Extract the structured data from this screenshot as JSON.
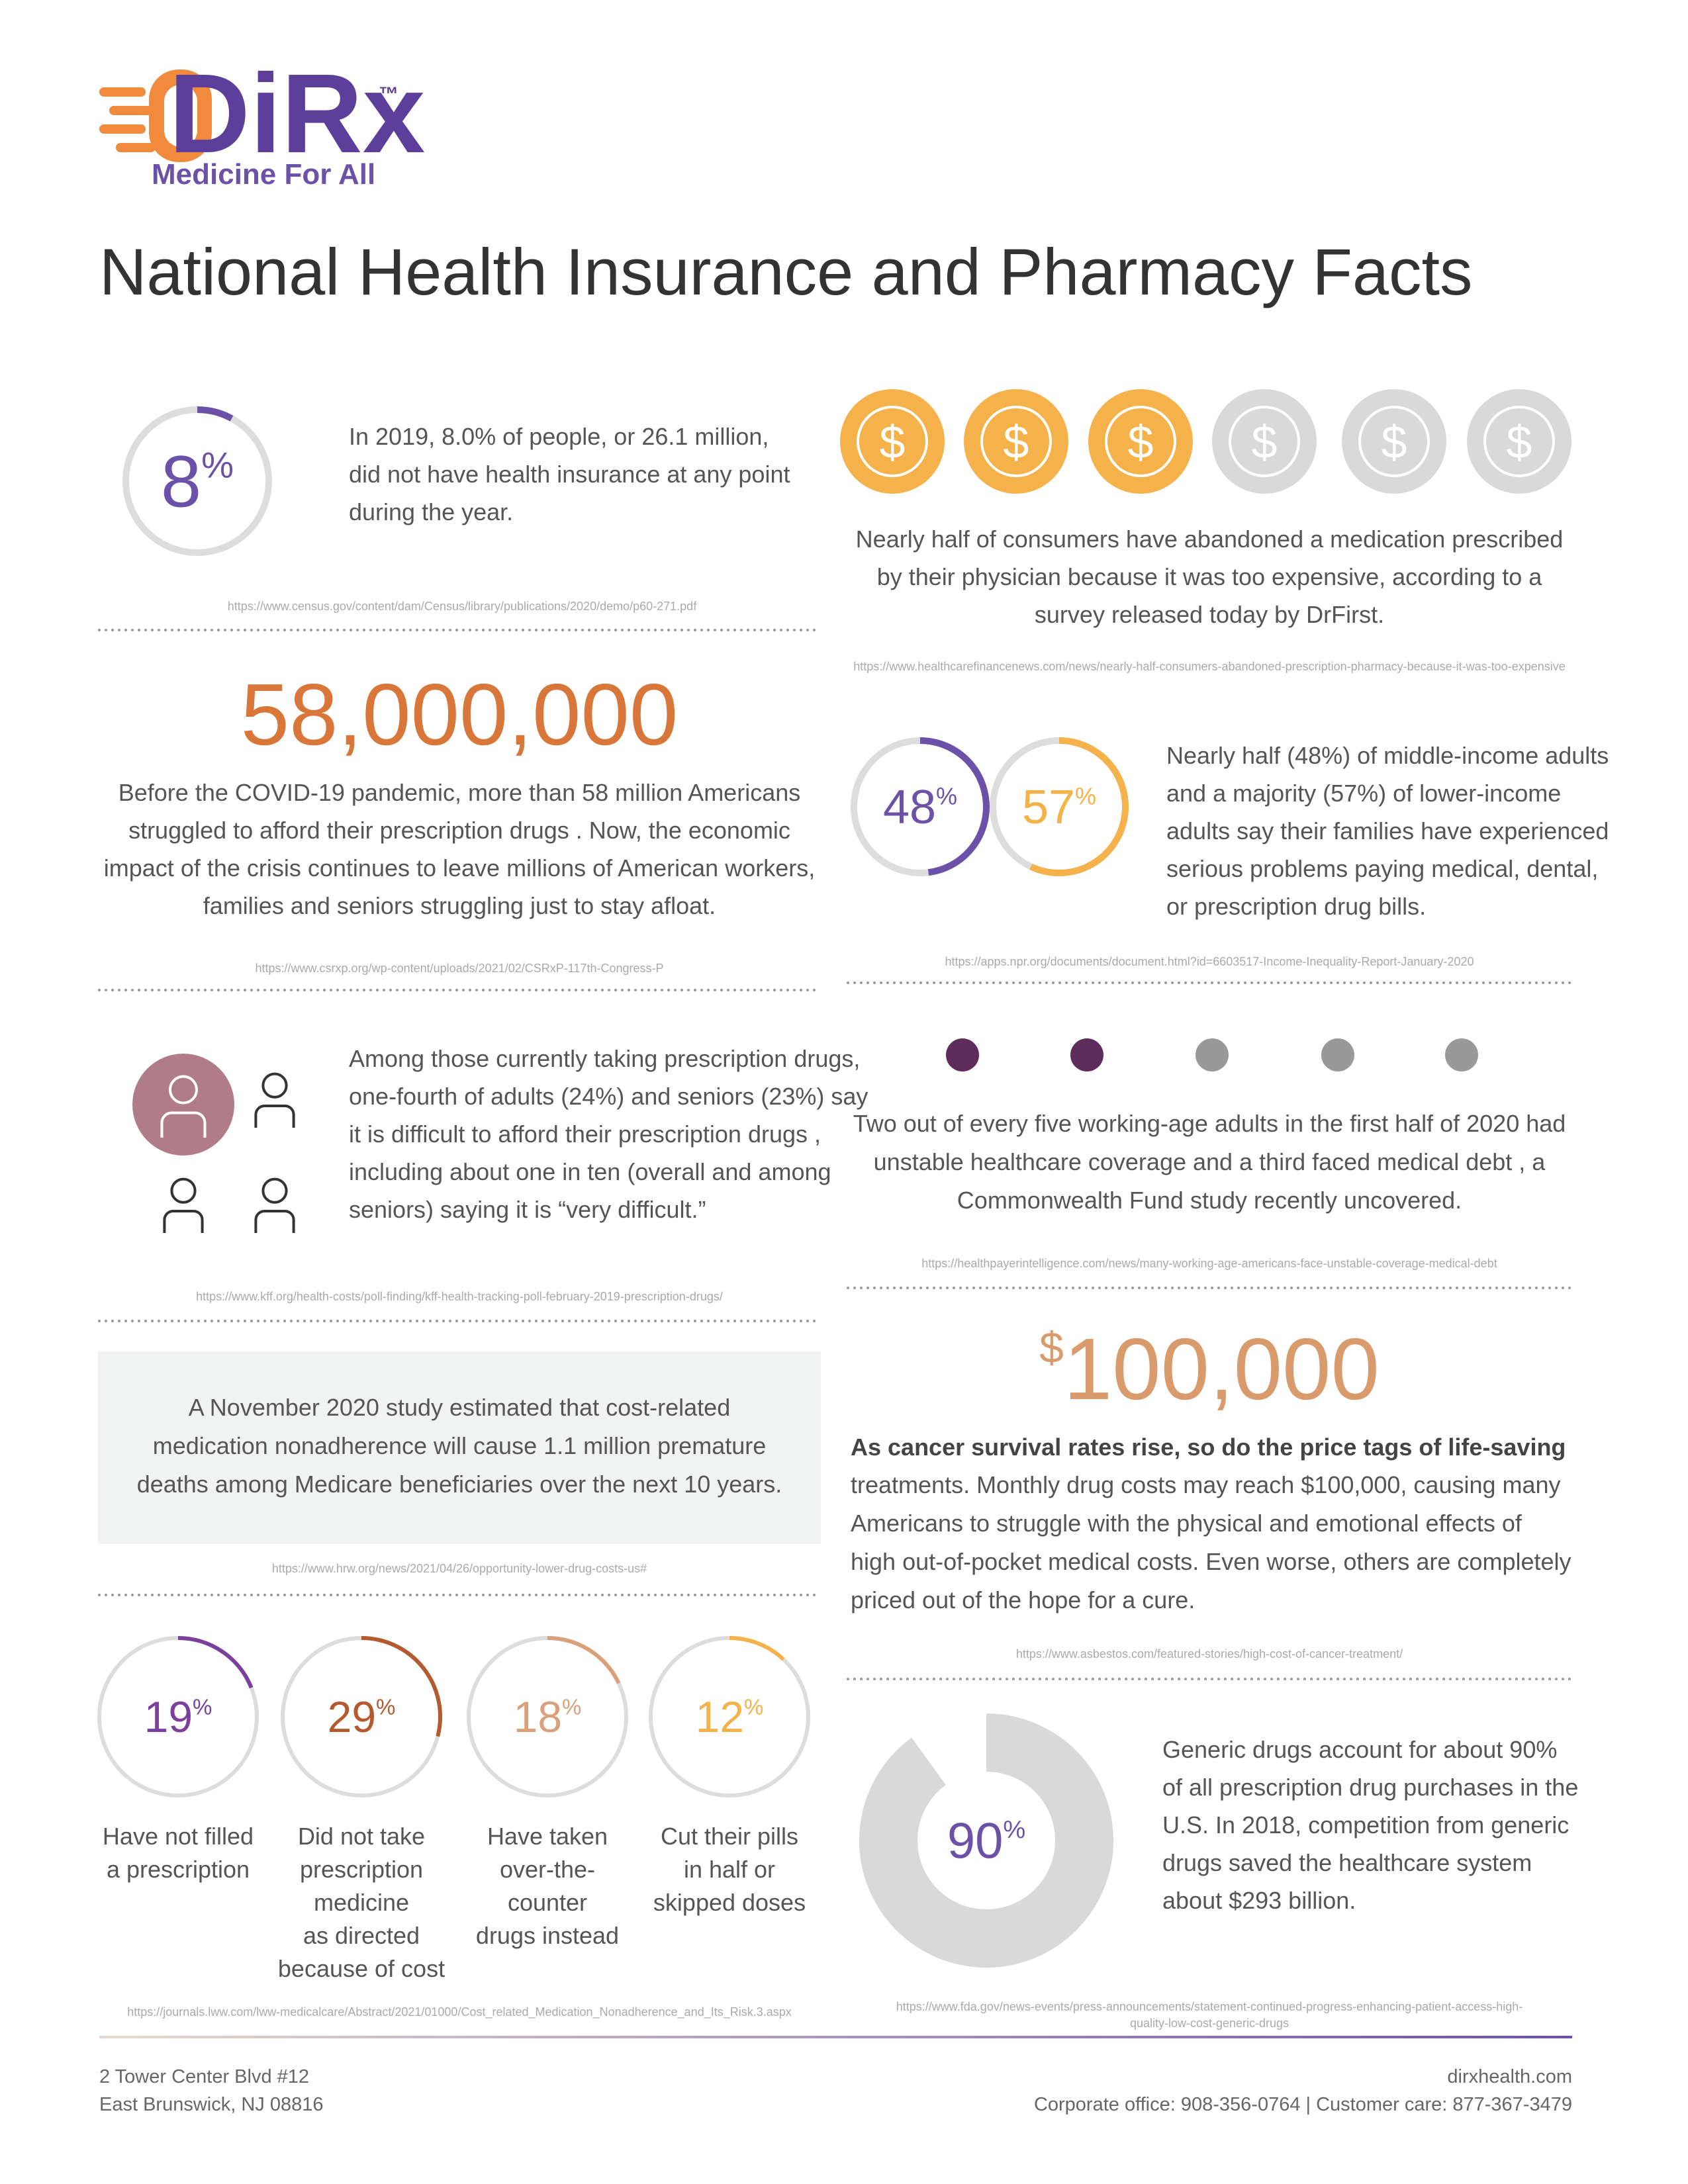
{
  "header": {
    "logo": "DiRx",
    "trademark": "™",
    "tagline": "Medicine For All"
  },
  "title": "National Health Insurance and Pharmacy Facts",
  "uninsured": {
    "value": 8,
    "unit": "%",
    "color": "#6b52a8",
    "text": [
      "In 2019, 8.0% of people, or 26.1 million,",
      "did not have health insurance  at any point",
      "during the year."
    ],
    "source": "https://www.census.gov/content/dam/Census/library/publications/2020/demo/p60-271.pdf"
  },
  "abandoned": {
    "coin_symbol": "$",
    "text": [
      "Nearly half of consumers have abandoned a medication  prescribed",
      "by their physician because it was too expensive, according to a",
      "survey released today by DrFirst."
    ],
    "source": "https://www.healthcarefinancenews.com/news/nearly-half-consumers-abandoned-prescription-pharmacy-because-it-was-too-expensive"
  },
  "afford": {
    "figure": "58,000,000",
    "text": [
      "Before the COVID-19 pandemic, more than 58 million Americans",
      "struggled to afford their prescription drugs   . Now, the economic",
      "impact of the crisis continues to leave millions of American workers,",
      "families and seniors struggling just to stay afloat."
    ],
    "source": "https://www.csrxp.org/wp-content/uploads/2021/02/CSRxP-117th-Congress-P"
  },
  "income": {
    "rings": [
      {
        "value": 48,
        "unit": "%",
        "color": "#6b52a8"
      },
      {
        "value": 57,
        "unit": "%",
        "color": "#f5b14a"
      }
    ],
    "text": [
      "Nearly half (48%) of middle-income adults",
      "and a majority (57%) of lower-income",
      "adults say their families have experienced",
      "serious problems paying medical, dental,",
      "or prescription drug bills."
    ],
    "source": "https://apps.npr.org/documents/document.html?id=6603517-Income-Inequality-Report-January-2020"
  },
  "difficulty": {
    "text": [
      "Among those currently taking prescription drugs,",
      "one-fourth of adults (24%) and seniors (23%) say",
      "it is difficult to afford their prescription drugs   ,",
      "including about one in ten (overall and among",
      "seniors) saying it is “very difficult.”"
    ],
    "source": "https://www.kff.org/health-costs/poll-finding/kff-health-tracking-poll-february-2019-prescription-drugs/"
  },
  "coverage": {
    "text": [
      "Two out of every five working-age adults in the first half of 2020 had",
      "unstable healthcare coverage  and a third faced medical debt , a",
      "Commonwealth Fund study recently uncovered."
    ],
    "source": "https://healthpayerintelligence.com/news/many-working-age-americans-face-unstable-coverage-medical-debt"
  },
  "nonadherence": {
    "text": [
      "A November 2020 study estimated that cost-related",
      "medication nonadherence will cause 1.1 million premature",
      "deaths among Medicare beneficiaries over the next 10 years."
    ],
    "source": "https://www.hrw.org/news/2021/04/26/opportunity-lower-drug-costs-us#"
  },
  "cancer": {
    "currency": "$",
    "figure": "100,000",
    "lead": "As cancer survival rates rise, so do the price tags of life-saving",
    "text": [
      "treatments. Monthly drug costs may reach $100,000, causing many",
      "Americans to struggle with the physical and emotional effects of",
      "high out-of-pocket medical costs.  Even worse, others are completely",
      "priced out of the hope for a cure."
    ],
    "source": "https://www.asbestos.com/featured-stories/high-cost-of-cancer-treatment/"
  },
  "behaviors": {
    "items": [
      {
        "value": 19,
        "unit": "%",
        "color": "#7b3f9e",
        "label": [
          "Have not filled",
          "a prescription"
        ]
      },
      {
        "value": 29,
        "unit": "%",
        "color": "#b35a2e",
        "label": [
          "Did not take",
          "prescription",
          "medicine",
          "as directed",
          "because of cost"
        ]
      },
      {
        "value": 18,
        "unit": "%",
        "color": "#d9a07a",
        "label": [
          "Have taken",
          "over-the-",
          "counter",
          "drugs instead"
        ]
      },
      {
        "value": 12,
        "unit": "%",
        "color": "#f5b14a",
        "label": [
          "Cut their pills",
          "in half or",
          "skipped doses"
        ]
      }
    ],
    "source": "https://journals.lww.com/lww-medicalcare/Abstract/2021/01000/Cost_related_Medication_Nonadherence_and_Its_Risk.3.aspx"
  },
  "generic": {
    "value": 90,
    "unit": "%",
    "color": "#d9d9d9",
    "text": [
      "Generic drugs account for about 90%",
      "of all prescription drug purchases in the",
      "U.S. In 2018, competition from generic",
      "drugs saved the healthcare system",
      "about $293 billion."
    ],
    "source": [
      "https://www.fda.gov/news-events/press-announcements/statement-continued-progress-enhancing-patient-access-high-",
      "quality-low-cost-generic-drugs"
    ]
  },
  "footer": {
    "address": [
      "2 Tower Center Blvd #12",
      "East Brunswick, NJ 08816"
    ],
    "website": "dirxhealth.com",
    "contacts": "Corporate office: 908-356-0764 | Customer care: 877-367-3479"
  }
}
